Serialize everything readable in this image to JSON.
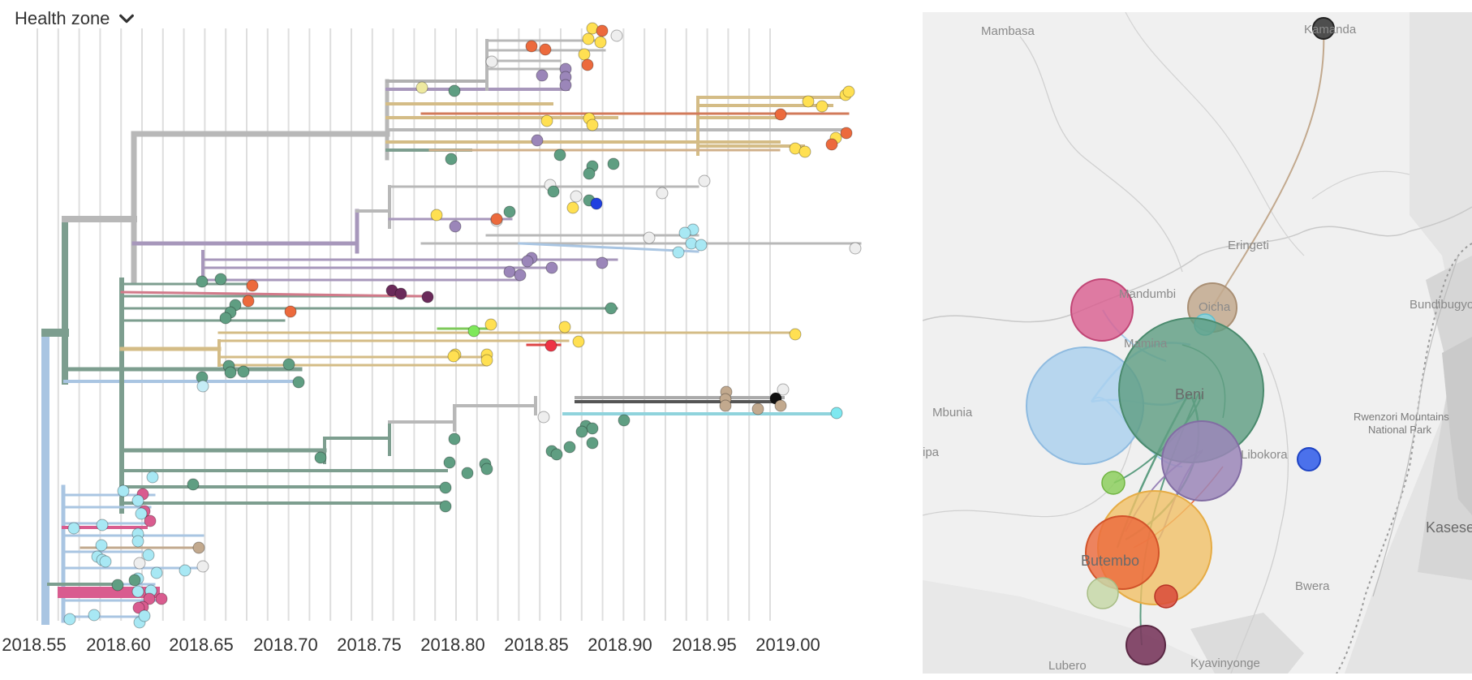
{
  "header": {
    "label": "Health zone",
    "icon": "chevron-down-icon"
  },
  "tree": {
    "ticks": [
      "2018.55",
      "2018.60",
      "2018.65",
      "2018.70",
      "2018.75",
      "2018.80",
      "2018.85",
      "2018.90",
      "2018.95",
      "2019.00"
    ]
  },
  "map": {
    "labels": {
      "mambasa": "Mambasa",
      "kamanda": "Kamanda",
      "eringeti": "Eringeti",
      "mandumbi": "Mandumbi",
      "oicha": "Oicha",
      "mamina": "Mamina",
      "bundibugyo": "Bundibugyo",
      "mbunia": "Mbunia",
      "beni": "Beni",
      "rwenzori1": "Rwenzori Mountains",
      "rwenzori2": "National Park",
      "libokora": "Libokora",
      "ipa": "ipa",
      "kasese": "Kasese",
      "butembo": "Butembo",
      "bwera": "Bwera",
      "lubero": "Lubero",
      "kyavinyonge": "Kyavinyonge"
    }
  },
  "colors": {
    "teal_green": "#5f9e82",
    "light_blue": "#a9cfee",
    "purple": "#9b86b9",
    "yellow": "#ffe052",
    "orange": "#ec6a3d",
    "pink": "#d95c8f",
    "tan": "#c2a98e",
    "grey": "#bdbdbd"
  }
}
